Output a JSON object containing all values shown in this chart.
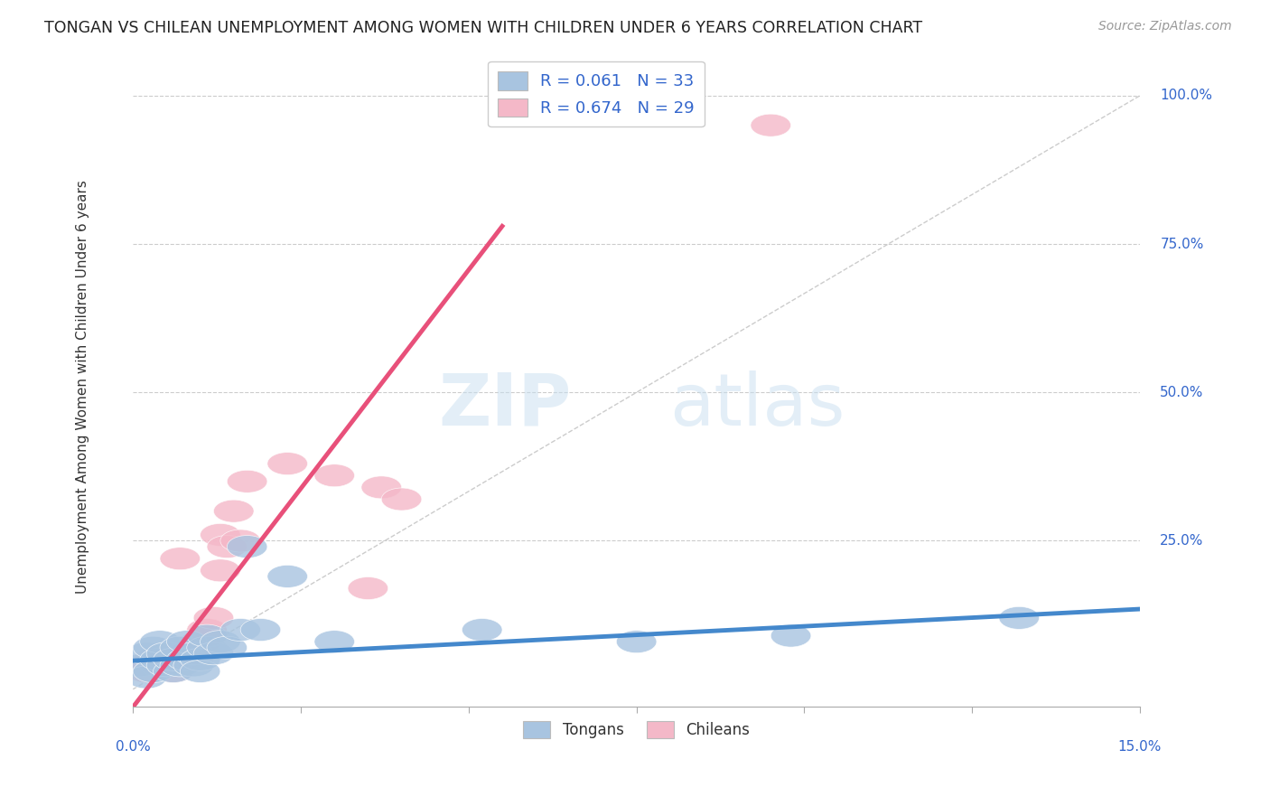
{
  "title": "TONGAN VS CHILEAN UNEMPLOYMENT AMONG WOMEN WITH CHILDREN UNDER 6 YEARS CORRELATION CHART",
  "source": "Source: ZipAtlas.com",
  "ylabel": "Unemployment Among Women with Children Under 6 years",
  "ytick_labels": [
    "100.0%",
    "75.0%",
    "50.0%",
    "25.0%"
  ],
  "ytick_values": [
    1.0,
    0.75,
    0.5,
    0.25
  ],
  "xlim": [
    0.0,
    0.15
  ],
  "ylim": [
    -0.03,
    1.05
  ],
  "watermark_zip": "ZIP",
  "watermark_atlas": "atlas",
  "legend_label1": "R = 0.061   N = 33",
  "legend_label2": "R = 0.674   N = 29",
  "legend_name1": "Tongans",
  "legend_name2": "Chileans",
  "tongan_color": "#a8c4e0",
  "chilean_color": "#f4b8c8",
  "tongan_line_color": "#4488cc",
  "chilean_line_color": "#e8507a",
  "ref_line_color": "#cccccc",
  "background_color": "#ffffff",
  "grid_color": "#cccccc",
  "tongan_scatter_x": [
    0.001,
    0.002,
    0.002,
    0.003,
    0.003,
    0.004,
    0.004,
    0.005,
    0.005,
    0.006,
    0.006,
    0.007,
    0.007,
    0.008,
    0.008,
    0.009,
    0.009,
    0.01,
    0.01,
    0.011,
    0.011,
    0.012,
    0.013,
    0.014,
    0.016,
    0.017,
    0.019,
    0.023,
    0.03,
    0.052,
    0.075,
    0.098,
    0.132
  ],
  "tongan_scatter_y": [
    0.04,
    0.02,
    0.06,
    0.03,
    0.07,
    0.05,
    0.08,
    0.04,
    0.06,
    0.03,
    0.05,
    0.04,
    0.07,
    0.05,
    0.08,
    0.04,
    0.06,
    0.05,
    0.03,
    0.07,
    0.09,
    0.06,
    0.08,
    0.07,
    0.1,
    0.24,
    0.1,
    0.19,
    0.08,
    0.1,
    0.08,
    0.09,
    0.12
  ],
  "chilean_scatter_x": [
    0.001,
    0.002,
    0.003,
    0.004,
    0.005,
    0.005,
    0.006,
    0.007,
    0.007,
    0.008,
    0.008,
    0.009,
    0.01,
    0.01,
    0.011,
    0.011,
    0.012,
    0.013,
    0.013,
    0.014,
    0.015,
    0.016,
    0.017,
    0.023,
    0.03,
    0.035,
    0.037,
    0.04,
    0.095
  ],
  "chilean_scatter_y": [
    0.04,
    0.03,
    0.05,
    0.04,
    0.06,
    0.05,
    0.03,
    0.05,
    0.22,
    0.07,
    0.06,
    0.05,
    0.08,
    0.07,
    0.09,
    0.1,
    0.12,
    0.2,
    0.26,
    0.24,
    0.3,
    0.25,
    0.35,
    0.38,
    0.36,
    0.17,
    0.34,
    0.32,
    0.95
  ],
  "tongan_line_x0": 0.0,
  "tongan_line_x1": 0.15,
  "tongan_line_y0": 0.048,
  "tongan_line_y1": 0.135,
  "chilean_line_x0": 0.0,
  "chilean_line_x1": 0.055,
  "chilean_line_y0": -0.03,
  "chilean_line_y1": 0.78
}
